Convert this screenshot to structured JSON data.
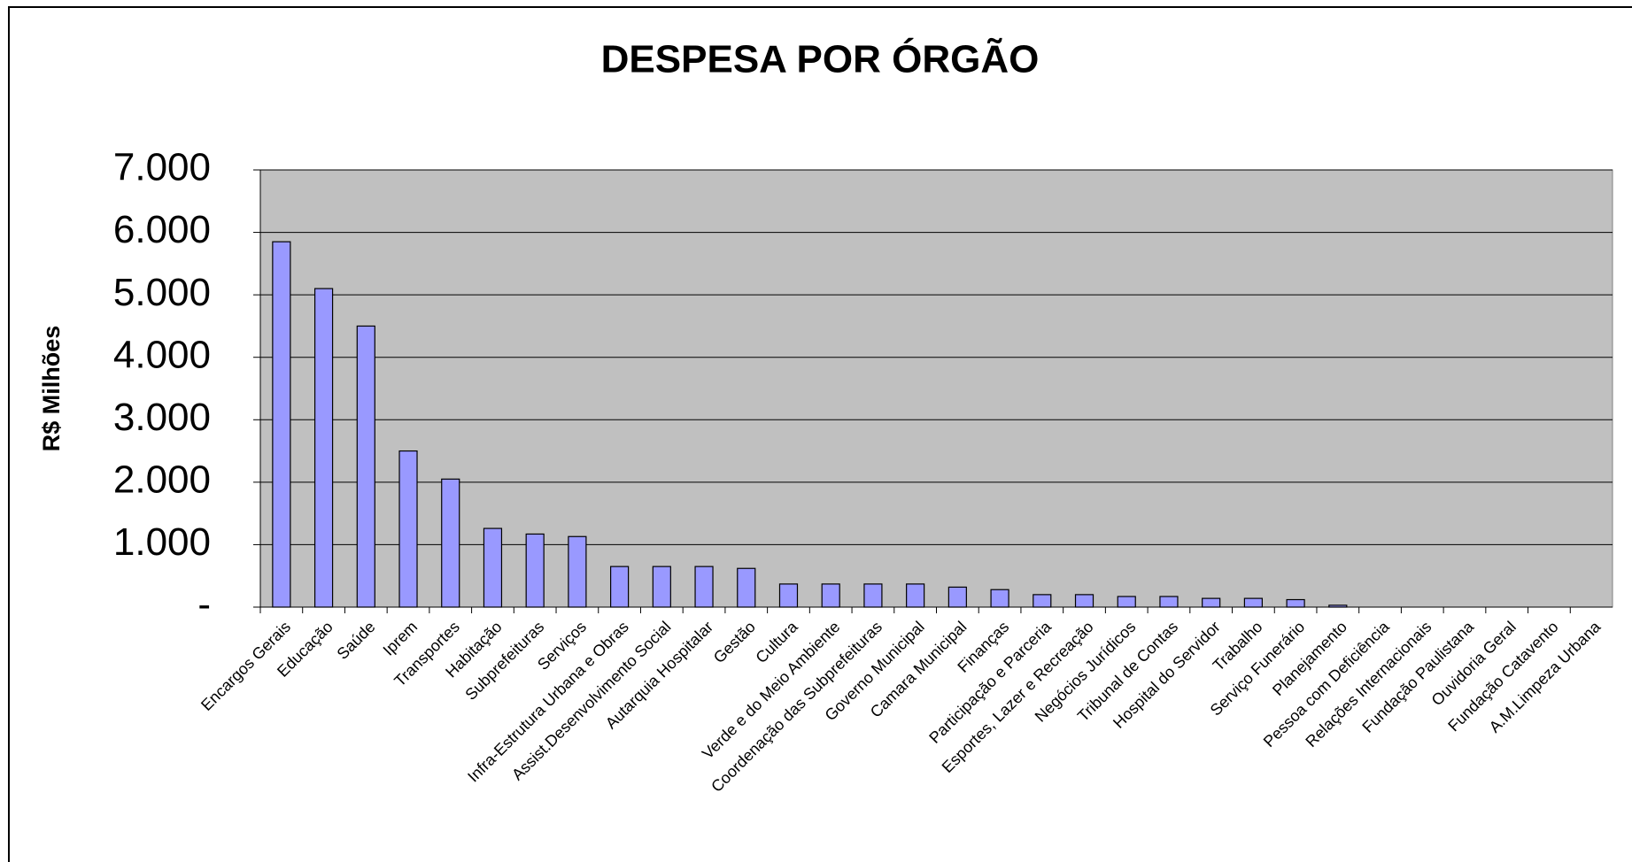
{
  "chart_data": {
    "type": "bar",
    "title": "DESPESA POR ÓRGÃO",
    "y_label": "R$ Milhões",
    "categories": [
      "Encargos Gerais",
      "Educação",
      "Saúde",
      "Iprem",
      "Transportes",
      "Habitação",
      "Subprefeituras",
      "Serviços",
      "Infra-Estrutura Urbana e Obras",
      "Assist.Desenvolvimento Social",
      "Autarquia Hospitalar",
      "Gestão",
      "Cultura",
      "Verde e do Meio Ambiente",
      "Coordenação das Subprefeituras",
      "Governo Municipal",
      "Camara Municipal",
      "Finanças",
      "Participação e Parceria",
      "Esportes, Lazer e Recreação",
      "Negócios Jurídicos",
      "Tribunal de Contas",
      "Hospital do Servidor",
      "Trabalho",
      "Serviço Funerário",
      "Planejamento",
      "Pessoa com Deficiência",
      "Relações Internacionais",
      "Fundação Paulistana",
      "Ouvidoria Geral",
      "Fundação Catavento",
      "A.M.Limpeza Urbana"
    ],
    "values": [
      5850,
      5100,
      4500,
      2500,
      2050,
      1260,
      1170,
      1130,
      650,
      650,
      650,
      620,
      370,
      370,
      370,
      370,
      320,
      280,
      200,
      200,
      170,
      170,
      140,
      140,
      120,
      30,
      0,
      0,
      0,
      0,
      0,
      0
    ],
    "color": "#9999ff",
    "ylim": [
      0,
      7000
    ],
    "yticks": [
      {
        "value": 0,
        "label": "-"
      },
      {
        "value": 1000,
        "label": "1.000"
      },
      {
        "value": 2000,
        "label": "2.000"
      },
      {
        "value": 3000,
        "label": "3.000"
      },
      {
        "value": 4000,
        "label": "4.000"
      },
      {
        "value": 5000,
        "label": "5.000"
      },
      {
        "value": 6000,
        "label": "6.000"
      },
      {
        "value": 7000,
        "label": "7.000"
      }
    ],
    "grid": true
  }
}
